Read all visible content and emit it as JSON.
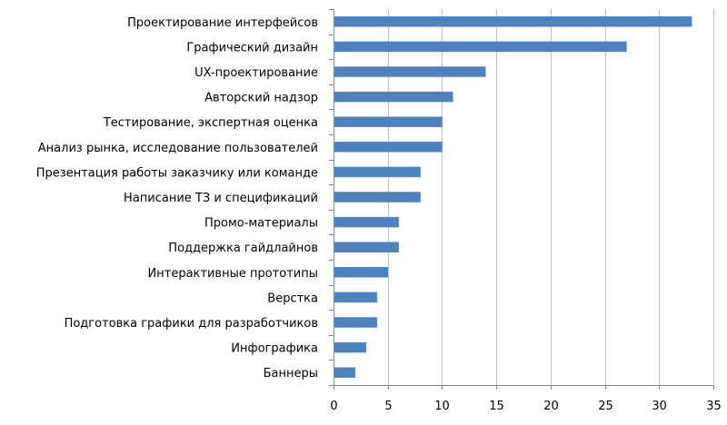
{
  "chart_data": {
    "type": "bar",
    "orientation": "horizontal",
    "title": "",
    "xlabel": "",
    "ylabel": "",
    "categories": [
      "Проектирование интерфейсов",
      "Графический дизайн",
      "UX-проектирование",
      "Авторский надзор",
      "Тестирование, экспертная оценка",
      "Анализ рынка, исследование пользователей",
      "Презентация работы заказчику или команде",
      "Написание ТЗ и спецификаций",
      "Промо-материалы",
      "Поддержка гайдлайнов",
      "Интерактивные прототипы",
      "Верстка",
      "Подготовка графики для разработчиков",
      "Инфографика",
      "Баннеры"
    ],
    "values": [
      33,
      27,
      14,
      11,
      10,
      10,
      8,
      8,
      6,
      6,
      5,
      4,
      4,
      3,
      2
    ],
    "xlim": [
      0,
      35
    ],
    "xticks": [
      "0",
      "5",
      "10",
      "15",
      "20",
      "25",
      "30",
      "35"
    ],
    "grid": true,
    "legend": "none",
    "bar_color": "#4F81BD",
    "grid_color": "#BFBFBF"
  }
}
